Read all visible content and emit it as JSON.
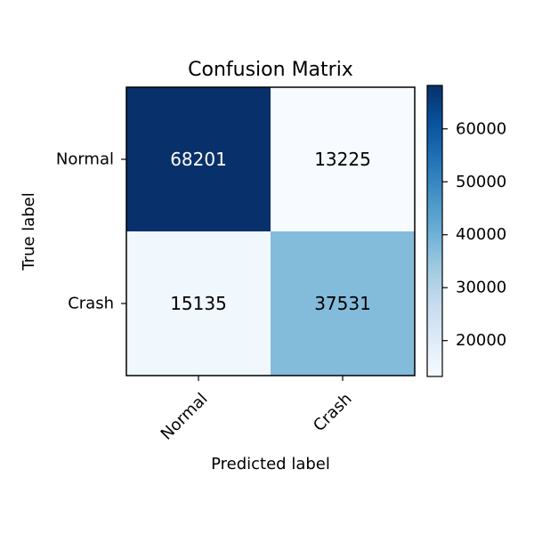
{
  "chart_data": {
    "type": "heatmap",
    "title": "Confusion Matrix",
    "xlabel": "Predicted label",
    "ylabel": "True label",
    "row_labels": [
      "Normal",
      "Crash"
    ],
    "col_labels": [
      "Normal",
      "Crash"
    ],
    "matrix": [
      [
        68201,
        13225
      ],
      [
        15135,
        37531
      ]
    ],
    "matrix_text": [
      [
        "68201",
        "13225"
      ],
      [
        "15135",
        "37531"
      ]
    ],
    "colormap": "Blues",
    "value_range": [
      13225,
      68201
    ],
    "colorbar_ticks": [
      20000,
      30000,
      40000,
      50000,
      60000
    ],
    "colorbar_tick_labels": [
      "20000",
      "30000",
      "40000",
      "50000",
      "60000"
    ],
    "grid": false
  }
}
